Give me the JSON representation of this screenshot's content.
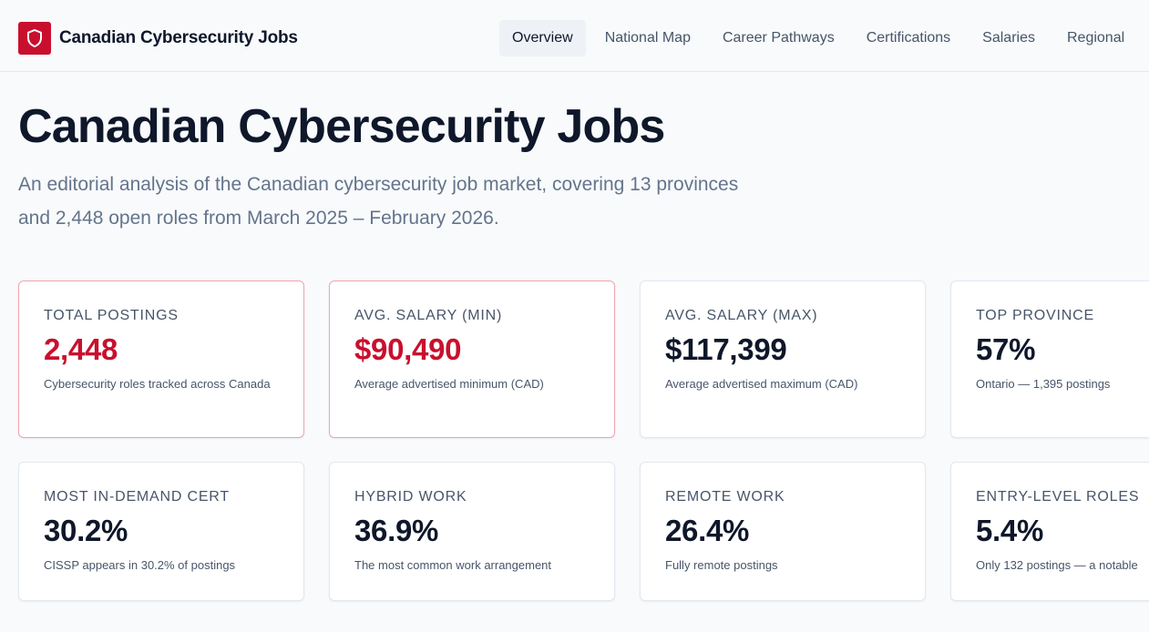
{
  "header": {
    "brand_name": "Canadian Cybersecurity Jobs",
    "logo_icon": "shield-icon",
    "nav": [
      {
        "label": "Overview",
        "active": true
      },
      {
        "label": "National Map",
        "active": false
      },
      {
        "label": "Career Pathways",
        "active": false
      },
      {
        "label": "Certifications",
        "active": false
      },
      {
        "label": "Salaries",
        "active": false
      },
      {
        "label": "Regional",
        "active": false
      }
    ]
  },
  "hero": {
    "title": "Canadian Cybersecurity Jobs",
    "subtitle": "An editorial analysis of the Canadian cybersecurity job market, covering 13 provinces and 2,448 open roles from March 2025 – February 2026."
  },
  "stats": [
    {
      "label": "Total Postings",
      "value": "2,448",
      "desc": "Cybersecurity roles tracked across Canada",
      "accent": true
    },
    {
      "label": "Avg. Salary (Min)",
      "value": "$90,490",
      "desc": "Average advertised minimum (CAD)",
      "accent": true
    },
    {
      "label": "Avg. Salary (Max)",
      "value": "$117,399",
      "desc": "Average advertised maximum (CAD)",
      "accent": false
    },
    {
      "label": "Top Province",
      "value": "57%",
      "desc": "Ontario — 1,395 postings",
      "accent": false
    },
    {
      "label": "Most In-Demand Cert",
      "value": "30.2%",
      "desc": "CISSP appears in 30.2% of postings",
      "accent": false
    },
    {
      "label": "Hybrid Work",
      "value": "36.9%",
      "desc": "The most common work arrangement",
      "accent": false
    },
    {
      "label": "Remote Work",
      "value": "26.4%",
      "desc": "Fully remote postings",
      "accent": false
    },
    {
      "label": "Entry-Level Roles",
      "value": "5.4%",
      "desc": "Only 132 postings — a notable",
      "accent": false
    }
  ],
  "colors": {
    "brand_red": "#c8102e",
    "text_dark": "#0f172a",
    "text_muted": "#64748b"
  }
}
